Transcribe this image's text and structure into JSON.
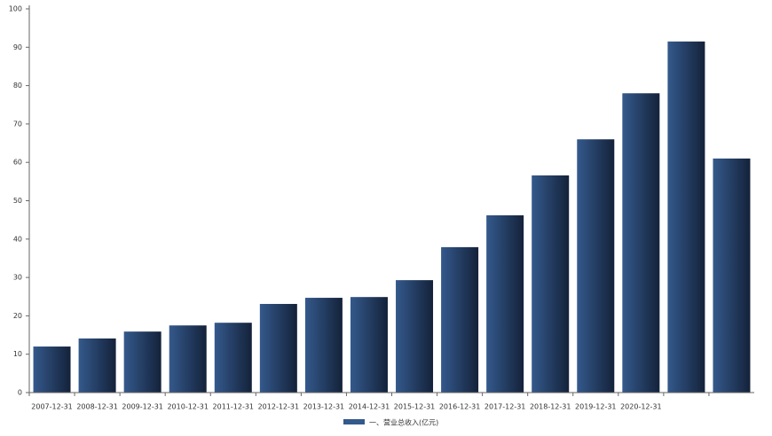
{
  "chart_data": {
    "type": "bar",
    "categories": [
      "2007-12-31",
      "2008-12-31",
      "2009-12-31",
      "2010-12-31",
      "2011-12-31",
      "2012-12-31",
      "2013-12-31",
      "2014-12-31",
      "2015-12-31",
      "2016-12-31",
      "2017-12-31",
      "2018-12-31",
      "2019-12-31",
      "2020-12-31",
      null,
      null
    ],
    "series": [
      {
        "name": "一、营业总收入(亿元)",
        "color": "#34598c",
        "values": [
          12.0,
          14.1,
          15.9,
          17.5,
          18.2,
          23.1,
          24.7,
          24.9,
          29.3,
          37.9,
          46.2,
          56.6,
          66.0,
          78.0,
          91.5,
          61.0
        ]
      }
    ],
    "ylim": [
      0,
      100
    ],
    "yticks": [
      0,
      10,
      20,
      30,
      40,
      50,
      60,
      70,
      80,
      90,
      100
    ]
  }
}
